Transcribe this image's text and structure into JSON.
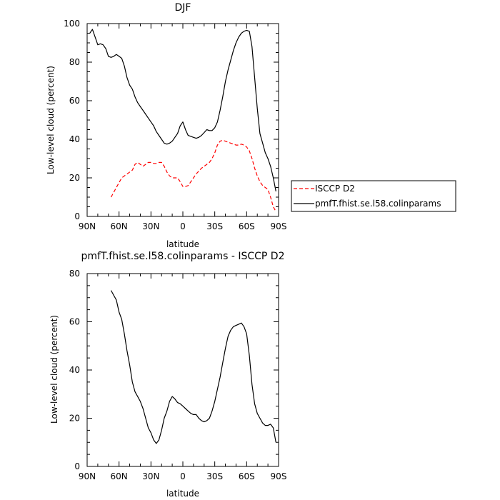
{
  "chart_data": [
    {
      "type": "line",
      "title": "DJF",
      "xlabel": "latitude",
      "ylabel": "Low-level cloud (percent)",
      "xlim": [
        90,
        -90
      ],
      "ylim": [
        0,
        100
      ],
      "x_tick_values": [
        90,
        60,
        30,
        0,
        -30,
        -60,
        -90
      ],
      "x_tick_labels": [
        "90N",
        "60N",
        "30N",
        "0",
        "30S",
        "60S",
        "90S"
      ],
      "y_ticks": [
        0,
        20,
        40,
        60,
        80,
        100
      ],
      "legend_position": "right, outside plot",
      "series": [
        {
          "name": "ISCCP D2",
          "color": "#ff0000",
          "dash": "dashed",
          "x": [
            67.5,
            62.5,
            57.5,
            52.5,
            47.5,
            45,
            42.5,
            40,
            37.5,
            35,
            32.5,
            30,
            27.5,
            25,
            22.5,
            20,
            17.5,
            15,
            12.5,
            10,
            7.5,
            5,
            2.5,
            0,
            -2.5,
            -5,
            -7.5,
            -10,
            -12.5,
            -15,
            -17.5,
            -20,
            -22.5,
            -25,
            -27.5,
            -30,
            -32.5,
            -35,
            -37.5,
            -40,
            -42.5,
            -45,
            -47.5,
            -50,
            -52.5,
            -55,
            -57.5,
            -60,
            -62.5,
            -65,
            -67.5,
            -70,
            -72.5,
            -75,
            -77.5,
            -80,
            -82.5,
            -85,
            -87.5
          ],
          "y": [
            10,
            15,
            20,
            22,
            24,
            27,
            28,
            27,
            26,
            27,
            28,
            28,
            27.5,
            27.5,
            28,
            28,
            26,
            23,
            21,
            20,
            20,
            20,
            18,
            15.5,
            15.5,
            16,
            18,
            20,
            22,
            23.5,
            25,
            26,
            27,
            28,
            30,
            33,
            37,
            39,
            39.5,
            39,
            38.5,
            38,
            37.5,
            37,
            37,
            37.5,
            37,
            36,
            34,
            30,
            25,
            21,
            18,
            16,
            15,
            14,
            10,
            5,
            2.5
          ]
        },
        {
          "name": "pmfT.fhist.se.l58.colinparams",
          "color": "#000000",
          "dash": "solid",
          "x": [
            87.5,
            85,
            82.5,
            80,
            77.5,
            75,
            72.5,
            70,
            67.5,
            65,
            62.5,
            60,
            57.5,
            55,
            52.5,
            50,
            47.5,
            45,
            42.5,
            40,
            37.5,
            35,
            32.5,
            30,
            27.5,
            25,
            22.5,
            20,
            17.5,
            15,
            12.5,
            10,
            7.5,
            5,
            2.5,
            0,
            -2.5,
            -5,
            -7.5,
            -10,
            -12.5,
            -15,
            -17.5,
            -20,
            -22.5,
            -25,
            -27.5,
            -30,
            -32.5,
            -35,
            -37.5,
            -40,
            -42.5,
            -45,
            -47.5,
            -50,
            -52.5,
            -55,
            -57.5,
            -60,
            -62.5,
            -65,
            -67.5,
            -70,
            -72.5,
            -75,
            -77.5,
            -80,
            -82.5,
            -85,
            -87.5
          ],
          "y": [
            95,
            97,
            93,
            89,
            89.5,
            89,
            87,
            83,
            82.5,
            83,
            84,
            83,
            82,
            78,
            72,
            68,
            66,
            62,
            59,
            57,
            55,
            53,
            51,
            49,
            47,
            44,
            42,
            40,
            38,
            37.5,
            38,
            39,
            41,
            43,
            47,
            49,
            45,
            42,
            41.5,
            41,
            40.5,
            41,
            42,
            43.5,
            45,
            44.5,
            44.5,
            46,
            49,
            55,
            62,
            70,
            76,
            81,
            86,
            90,
            93,
            95,
            96,
            96.5,
            96,
            88,
            72,
            56,
            43,
            38,
            33,
            30,
            26,
            20,
            13
          ]
        }
      ]
    },
    {
      "type": "line",
      "title": "pmfT.fhist.se.l58.colinparams - ISCCP D2",
      "xlabel": "latitude",
      "ylabel": "Low-level cloud (percent)",
      "xlim": [
        90,
        -90
      ],
      "ylim": [
        0,
        80
      ],
      "x_tick_values": [
        90,
        60,
        30,
        0,
        -30,
        -60,
        -90
      ],
      "x_tick_labels": [
        "90N",
        "60N",
        "30N",
        "0",
        "30S",
        "60S",
        "90S"
      ],
      "y_ticks": [
        0,
        20,
        40,
        60,
        80
      ],
      "series": [
        {
          "color": "#000000",
          "dash": "solid",
          "x": [
            67.5,
            65,
            62.5,
            60,
            57.5,
            55,
            52.5,
            50,
            47.5,
            45,
            42.5,
            40,
            37.5,
            35,
            32.5,
            30,
            27.5,
            25,
            22.5,
            20,
            17.5,
            15,
            12.5,
            10,
            7.5,
            5,
            2.5,
            0,
            -2.5,
            -5,
            -7.5,
            -10,
            -12.5,
            -15,
            -17.5,
            -20,
            -22.5,
            -25,
            -27.5,
            -30,
            -32.5,
            -35,
            -37.5,
            -40,
            -42.5,
            -45,
            -47.5,
            -50,
            -52.5,
            -55,
            -57.5,
            -60,
            -62.5,
            -65,
            -67.5,
            -70,
            -72.5,
            -75,
            -77.5,
            -80,
            -82.5,
            -85,
            -87.5
          ],
          "y": [
            73,
            71,
            69,
            64,
            61,
            55,
            48,
            42,
            35,
            31,
            29,
            27,
            24,
            20,
            16,
            14,
            11,
            9.5,
            11,
            15,
            20,
            23,
            27,
            29,
            28,
            26.5,
            26,
            25,
            24,
            23,
            22,
            21.5,
            21.5,
            20,
            19,
            18.5,
            19,
            20,
            23,
            27,
            32,
            37,
            43,
            49,
            54,
            56.5,
            58,
            58.5,
            59,
            59.5,
            58,
            55,
            46,
            34,
            26,
            22,
            20,
            18,
            17,
            17,
            17.5,
            16,
            10
          ]
        }
      ]
    }
  ]
}
